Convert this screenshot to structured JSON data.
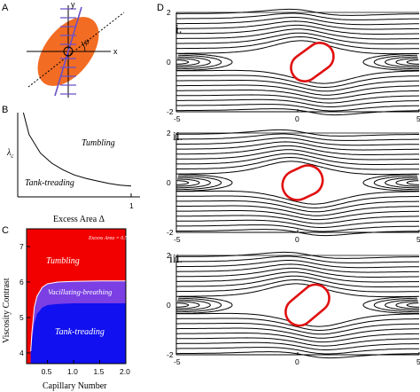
{
  "panel_letters": {
    "a": "A",
    "b": "B",
    "c": "C",
    "d": "D"
  },
  "panel_a": {
    "x_axis": "x",
    "y_axis": "y",
    "angle": "ψ",
    "colors": {
      "ellipse": "#f26c23",
      "flow_arrows": "#6b4fc8",
      "axes": "#000000"
    }
  },
  "panel_b": {
    "ylabel": "λ",
    "ylabel_sub": "c",
    "xlabel": "Excess Area Δ",
    "x_tick": "1",
    "region_upper": "Tumbling",
    "region_lower": "Tank-treading"
  },
  "panel_c": {
    "ylabel": "Viscosity Contrast",
    "xlabel": "Capillary Number",
    "note": "Excess Area = 0.5",
    "x_ticks": [
      "0.5",
      "1.0",
      "1.5",
      "2.0"
    ],
    "y_ticks": [
      "4",
      "5",
      "6",
      "7"
    ],
    "region_top": "Tumbling",
    "region_mid": "Vacillating-breathing",
    "region_bottom": "Tank-treading",
    "colors": {
      "tumbling": "#f20000",
      "vacillating": "#7b3fe4",
      "tank_treading": "#1010f0"
    }
  },
  "panel_d": {
    "subpanels": [
      "i.",
      "ii.",
      "iii."
    ],
    "x_ticks": [
      "-5",
      "0",
      "5"
    ],
    "y_ticks": [
      "2",
      "0",
      "-2"
    ],
    "colors": {
      "streamlines": "#000000",
      "vesicle": "#e01010"
    }
  },
  "chart_data": [
    {
      "type": "line",
      "title": "",
      "xlabel": "Excess Area Δ",
      "ylabel": "λc",
      "x_ticks": [
        "1"
      ],
      "series": [
        {
          "x": [
            0.05,
            0.1,
            0.2,
            0.3,
            0.4,
            0.5,
            0.6,
            0.7,
            0.8,
            0.9,
            1.0
          ],
          "y": [
            1.0,
            0.74,
            0.52,
            0.4,
            0.32,
            0.26,
            0.22,
            0.19,
            0.16,
            0.14,
            0.13
          ]
        }
      ]
    },
    {
      "type": "area",
      "title": "",
      "xlabel": "Capillary Number",
      "ylabel": "Viscosity Contrast",
      "xlim": [
        0.1,
        2.0
      ],
      "ylim": [
        3.7,
        7.5
      ],
      "series": [
        {
          "name": "Vacillating-breathing",
          "x": [
            0.18,
            0.2,
            0.25,
            0.3,
            0.4,
            0.5,
            0.7,
            1.0,
            1.5,
            2.0
          ],
          "y": [
            4.05,
            4.55,
            5.3,
            5.6,
            5.85,
            5.95,
            6.0,
            6.02,
            6.03,
            6.03
          ]
        },
        {
          "name": "Tank-treading",
          "x": [
            0.18,
            0.2,
            0.25,
            0.3,
            0.4,
            0.5,
            0.7,
            1.0,
            1.5,
            2.0
          ],
          "y": [
            4.0,
            4.3,
            4.85,
            5.1,
            5.28,
            5.35,
            5.38,
            5.4,
            5.4,
            5.4
          ]
        }
      ]
    }
  ]
}
